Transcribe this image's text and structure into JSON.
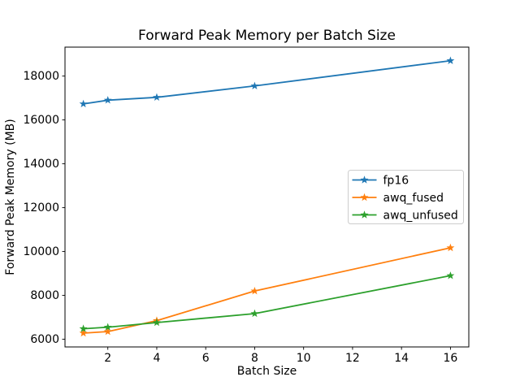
{
  "chart_data": {
    "type": "line",
    "title": "Forward Peak Memory per Batch Size",
    "xlabel": "Batch Size",
    "ylabel": "Forward Peak Memory (MB)",
    "x": [
      1,
      2,
      4,
      8,
      16
    ],
    "series": [
      {
        "name": "fp16",
        "color": "#1f77b4",
        "values": [
          16730,
          16900,
          17030,
          17550,
          18700
        ]
      },
      {
        "name": "awq_fused",
        "color": "#ff7f0e",
        "values": [
          6280,
          6350,
          6850,
          8200,
          10170
        ]
      },
      {
        "name": "awq_unfused",
        "color": "#2ca02c",
        "values": [
          6480,
          6550,
          6760,
          7170,
          8900
        ]
      }
    ],
    "xticks": [
      2,
      4,
      6,
      8,
      10,
      12,
      14,
      16
    ],
    "yticks": [
      6000,
      8000,
      10000,
      12000,
      14000,
      16000,
      18000
    ],
    "xlim": [
      0.25,
      16.75
    ],
    "ylim": [
      5650,
      19320
    ],
    "grid": false,
    "marker": "star",
    "legend_position": "center right",
    "background": "#ffffff",
    "axis_color": "#000000",
    "legend_border_color": "#cccccc"
  }
}
